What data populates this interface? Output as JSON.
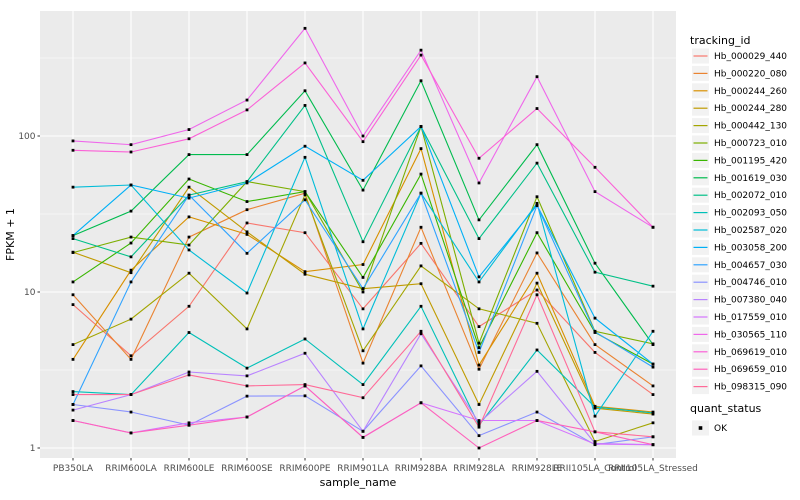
{
  "figure": {
    "background": "#ffffff",
    "panel_background": "#ebebeb",
    "gridline_color": "#ffffff",
    "point_color": "#000000",
    "tick_color": "#333333",
    "legend_key_background": "#f2f2f2"
  },
  "chart_data": {
    "type": "line",
    "title": "",
    "xlabel": "sample_name",
    "ylabel": "FPKM + 1",
    "y_scale": "log10",
    "y_tick_labels": [
      "1",
      "10",
      "100"
    ],
    "y_tick_values": [
      1,
      10,
      100
    ],
    "y_minor_values": [
      3.162,
      31.62,
      316.2
    ],
    "ylim": [
      0.95,
      630
    ],
    "grid": true,
    "legend_position": "right",
    "legend_title": "tracking_id",
    "point_shape": "square",
    "x_categories": [
      "PB350LA",
      "RRIM600LA",
      "RRIM600LE",
      "RRIM600SE",
      "RRIM600PE",
      "RRIM901LA",
      "RRIM928BA",
      "RRIM928LA",
      "RRIM928LE",
      "RRII105LA_Control",
      "RRII105LA_Stressed"
    ],
    "values_note": "FPKM+1 values estimated from log-scale pixel positions",
    "series": [
      {
        "name": "Hb_000029_440",
        "color": "#F8766D",
        "values": [
          8.3,
          3.9,
          8.1,
          27.7,
          24,
          7.8,
          20.5,
          6.0,
          10.3,
          4.1,
          2.2
        ]
      },
      {
        "name": "Hb_000220_080",
        "color": "#EA8331",
        "values": [
          9.6,
          3.7,
          22.5,
          33.7,
          43,
          3.5,
          26,
          3.2,
          17.8,
          4.6,
          2.5
        ]
      },
      {
        "name": "Hb_000244_260",
        "color": "#D89000",
        "values": [
          3.7,
          13.8,
          30.3,
          23.4,
          13.5,
          15,
          83,
          3.4,
          13.2,
          1.85,
          1.7
        ]
      },
      {
        "name": "Hb_000244_280",
        "color": "#C09B00",
        "values": [
          18,
          13.3,
          47,
          24.3,
          13,
          10.5,
          11.3,
          1.9,
          11.4,
          1.8,
          1.65
        ]
      },
      {
        "name": "Hb_000442_130",
        "color": "#A3A500",
        "values": [
          4.6,
          6.7,
          13.2,
          5.8,
          42,
          4.2,
          14.7,
          7.8,
          6.3,
          1.1,
          1.45
        ]
      },
      {
        "name": "Hb_000723_010",
        "color": "#7CAE00",
        "values": [
          17.9,
          22.5,
          20,
          51,
          44,
          10,
          115,
          4.7,
          40.8,
          5.6,
          4.65
        ]
      },
      {
        "name": "Hb_001195_420",
        "color": "#39B600",
        "values": [
          11.6,
          20.6,
          53,
          38,
          44,
          12.4,
          57,
          4.4,
          24,
          5.5,
          3.45
        ]
      },
      {
        "name": "Hb_001619_030",
        "color": "#00BB4E",
        "values": [
          23,
          33,
          76,
          76,
          195,
          45,
          226,
          29,
          88,
          15.3,
          4.6
        ]
      },
      {
        "name": "Hb_002072_010",
        "color": "#00C087",
        "values": [
          22,
          16.8,
          41.8,
          51,
          157,
          21,
          115,
          22,
          67,
          13.4,
          10.9
        ]
      },
      {
        "name": "Hb_002093_050",
        "color": "#00C0B8",
        "values": [
          2.3,
          2.2,
          5.5,
          3.25,
          5.0,
          2.55,
          8.1,
          1.4,
          4.25,
          1.83,
          1.68
        ]
      },
      {
        "name": "Hb_002587_020",
        "color": "#00BCD8",
        "values": [
          47,
          48.5,
          18.6,
          9.85,
          73,
          5.8,
          43,
          11.6,
          37,
          1.6,
          5.6
        ]
      },
      {
        "name": "Hb_003058_200",
        "color": "#00B0F6",
        "values": [
          23,
          48.5,
          40,
          50,
          86,
          52,
          115,
          12.5,
          36,
          6.8,
          3.45
        ]
      },
      {
        "name": "Hb_004657_030",
        "color": "#2FA3FF",
        "values": [
          1.9,
          11.6,
          41.8,
          17.7,
          39,
          10.5,
          43,
          4.1,
          35.8,
          5.55,
          3.3
        ]
      },
      {
        "name": "Hb_004746_010",
        "color": "#8B93FF",
        "values": [
          1.9,
          1.7,
          1.4,
          2.15,
          2.16,
          1.28,
          3.36,
          1.2,
          1.7,
          1.05,
          1.18
        ]
      },
      {
        "name": "Hb_007380_040",
        "color": "#B983FF",
        "values": [
          1.75,
          2.2,
          3.07,
          2.9,
          4.05,
          1.28,
          5.4,
          1.45,
          3.1,
          1.07,
          1.05
        ]
      },
      {
        "name": "Hb_017559_010",
        "color": "#D575FE",
        "values": [
          1.5,
          1.25,
          1.45,
          1.58,
          2.5,
          1.17,
          1.95,
          1.5,
          1.5,
          1.06,
          1.05
        ]
      },
      {
        "name": "Hb_030565_110",
        "color": "#EF67EB",
        "values": [
          93,
          88,
          110,
          170,
          490,
          100,
          355,
          50,
          240,
          44,
          26
        ]
      },
      {
        "name": "Hb_069619_010",
        "color": "#FB61D7",
        "values": [
          81,
          79,
          96,
          147,
          294,
          92,
          330,
          72,
          150,
          63,
          26
        ]
      },
      {
        "name": "Hb_069659_010",
        "color": "#FF62BC",
        "values": [
          1.5,
          1.25,
          1.4,
          1.58,
          2.5,
          1.17,
          1.95,
          1.0,
          1.5,
          1.27,
          1.05
        ]
      },
      {
        "name": "Hb_098315_090",
        "color": "#FF6A98",
        "values": [
          2.2,
          2.2,
          2.94,
          2.5,
          2.55,
          2.1,
          5.6,
          1.36,
          9.6,
          1.27,
          1.18
        ]
      }
    ],
    "legend2": {
      "title": "quant_status",
      "items": [
        {
          "label": "OK",
          "marker": "black-square"
        }
      ]
    }
  }
}
